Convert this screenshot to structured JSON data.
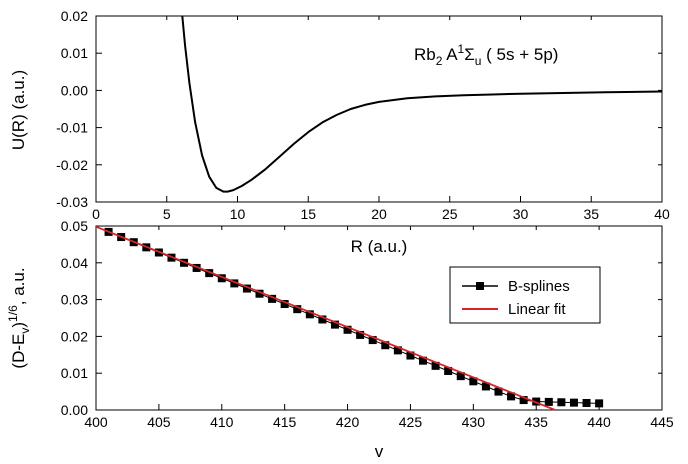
{
  "chart_data": [
    {
      "type": "line",
      "annotation": {
        "base": "Rb",
        "sub1": "2",
        "mid": " A",
        "sup": "1",
        "sigma": "Σ",
        "sub2": "u",
        "tail": " ( 5s + 5p)"
      },
      "xlabel": "R (a.u.)",
      "ylabel": "U(R) (a.u.)",
      "xlim": [
        0,
        40
      ],
      "ylim": [
        -0.03,
        0.02
      ],
      "xticks": [
        "0",
        "5",
        "10",
        "15",
        "20",
        "25",
        "30",
        "35",
        "40"
      ],
      "yticks": [
        "0.02",
        "0.01",
        "0.00",
        "-0.01",
        "-0.02",
        "-0.03"
      ],
      "grid": false,
      "series": [
        {
          "color": "#000000",
          "x": [
            6.1,
            6.3,
            6.6,
            7.0,
            7.5,
            8.0,
            8.5,
            9.0,
            9.3,
            9.7,
            10.3,
            11.0,
            12.0,
            13.0,
            14.0,
            15.0,
            16.0,
            17.0,
            18.0,
            19.0,
            20.0,
            22.0,
            24.0,
            26.0,
            28.0,
            30.0,
            33.0,
            36.0,
            40.0
          ],
          "y": [
            0.02,
            0.012,
            0.002,
            -0.0085,
            -0.0175,
            -0.0232,
            -0.0262,
            -0.0272,
            -0.0272,
            -0.0268,
            -0.0257,
            -0.024,
            -0.0211,
            -0.0177,
            -0.0143,
            -0.0112,
            -0.0086,
            -0.0066,
            -0.005,
            -0.0039,
            -0.0031,
            -0.0021,
            -0.0016,
            -0.0013,
            -0.0011,
            -0.0009,
            -0.0007,
            -0.0005,
            -0.0003
          ]
        }
      ]
    },
    {
      "type": "scatter",
      "xlabel": "v",
      "ylabel_main": "(D-E",
      "ylabel_sub": "v",
      "ylabel_close": ")",
      "ylabel_sup": "1/6",
      "ylabel_tail": ", a.u.",
      "xlim": [
        400,
        445
      ],
      "ylim": [
        0,
        0.05
      ],
      "xticks": [
        "400",
        "405",
        "410",
        "415",
        "420",
        "425",
        "430",
        "435",
        "440",
        "445"
      ],
      "yticks": [
        "0.05",
        "0.04",
        "0.03",
        "0.02",
        "0.01",
        "0.00"
      ],
      "grid": false,
      "legend_position": "right",
      "legend": [
        "B-splines",
        "Linear fit"
      ],
      "series": [
        {
          "name": "B-splines",
          "color": "#000000",
          "marker": "square",
          "x": [
            401,
            402,
            403,
            404,
            405,
            406,
            407,
            408,
            409,
            410,
            411,
            412,
            413,
            414,
            415,
            416,
            417,
            418,
            419,
            420,
            421,
            422,
            423,
            424,
            425,
            426,
            427,
            428,
            429,
            430,
            431,
            432,
            433,
            434,
            435,
            436,
            437,
            438,
            439,
            440
          ],
          "y": [
            0.0484,
            0.047,
            0.0456,
            0.0442,
            0.0428,
            0.0414,
            0.04,
            0.0386,
            0.0372,
            0.0358,
            0.0344,
            0.033,
            0.0316,
            0.0302,
            0.0288,
            0.0274,
            0.026,
            0.0246,
            0.0232,
            0.0218,
            0.0204,
            0.019,
            0.0176,
            0.0162,
            0.0148,
            0.0134,
            0.012,
            0.0106,
            0.0092,
            0.0078,
            0.0064,
            0.005,
            0.0037,
            0.0027,
            0.0023,
            0.0022,
            0.0021,
            0.002,
            0.0019,
            0.0018
          ]
        },
        {
          "name": "Linear fit",
          "color": "#d62728",
          "type": "line",
          "x": [
            400,
            436.5
          ],
          "y": [
            0.0498,
            0.0
          ]
        }
      ]
    }
  ]
}
